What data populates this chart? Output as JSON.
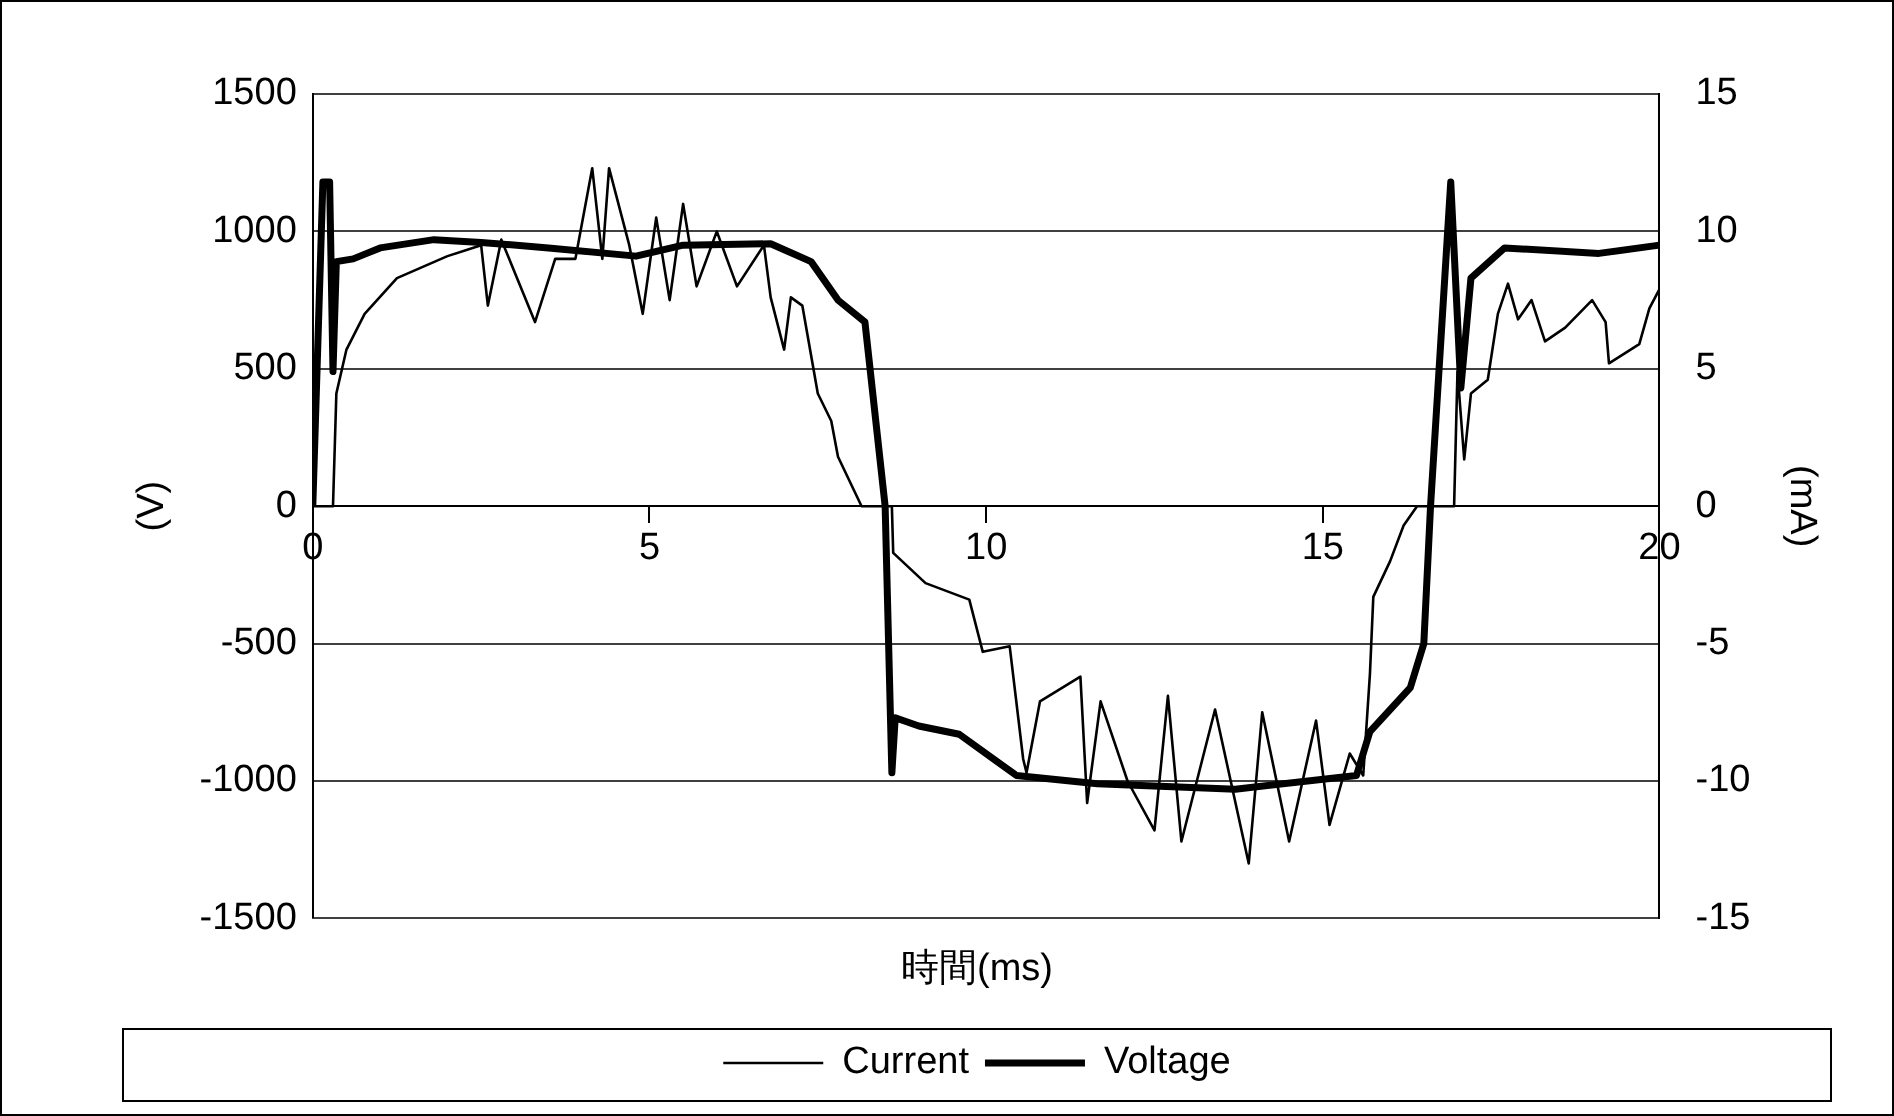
{
  "chart_data": {
    "type": "line",
    "xlabel": "時間(ms)",
    "ylabel": "(V)",
    "y2label": "(mA)",
    "xlim": [
      0,
      20
    ],
    "xticks": [
      0,
      5,
      10,
      15,
      20
    ],
    "ylim": [
      -1500,
      1500
    ],
    "yticks": [
      -1500,
      -1000,
      -500,
      0,
      500,
      1000,
      1500
    ],
    "y2lim": [
      -15,
      15
    ],
    "y2ticks": [
      -15,
      -10,
      -5,
      0,
      5,
      10,
      15
    ],
    "grid": "y",
    "legend": "bottom",
    "marker": "none",
    "line_style": "solid",
    "series": [
      {
        "name": "Voltage",
        "color": "#000000",
        "x": [
          0,
          0.15,
          0.25,
          0.3,
          0.35,
          0.6,
          1.0,
          1.8,
          2.5,
          3.5,
          4.8,
          5.5,
          6.8,
          7.4,
          7.8,
          8.2,
          8.5,
          8.6,
          8.65,
          9.0,
          9.6,
          10.45,
          11.65,
          13.7,
          15.5,
          15.7,
          16.3,
          16.5,
          16.6,
          16.9,
          17.05,
          17.2,
          17.7,
          19.1,
          20
        ],
        "values": [
          0,
          1180,
          1180,
          490,
          890,
          900,
          940,
          970,
          960,
          940,
          910,
          950,
          955,
          890,
          750,
          670,
          0,
          -970,
          -770,
          -800,
          -830,
          -980,
          -1010,
          -1030,
          -980,
          -820,
          -660,
          -500,
          0,
          1180,
          430,
          830,
          940,
          920,
          950
        ]
      },
      {
        "name": "Current",
        "color": "#000000",
        "axis": "y2",
        "x": [
          0,
          0.3,
          0.35,
          0.5,
          0.77,
          1.25,
          2.0,
          2.5,
          2.6,
          2.8,
          3.3,
          3.6,
          3.9,
          4.15,
          4.3,
          4.4,
          4.7,
          4.9,
          5.1,
          5.3,
          5.5,
          5.7,
          6.0,
          6.3,
          6.7,
          6.8,
          7.0,
          7.1,
          7.27,
          7.5,
          7.7,
          7.8,
          8.15,
          8.6,
          8.62,
          9.1,
          9.75,
          9.95,
          10.35,
          10.55,
          10.6,
          10.8,
          11.4,
          11.5,
          11.7,
          12.1,
          12.5,
          12.7,
          12.9,
          13.4,
          13.9,
          14.1,
          14.5,
          14.9,
          15.1,
          15.4,
          15.6,
          15.7,
          15.75,
          16.0,
          16.2,
          16.4,
          16.95,
          17.0,
          17.1,
          17.2,
          17.45,
          17.6,
          17.75,
          17.9,
          18.1,
          18.3,
          18.6,
          19.0,
          19.2,
          19.25,
          19.7,
          19.85,
          20
        ],
        "values": [
          0,
          0,
          4.1,
          5.7,
          7.0,
          8.3,
          9.1,
          9.5,
          7.3,
          9.7,
          6.7,
          9.0,
          9.0,
          12.3,
          9.0,
          12.3,
          9.5,
          7.0,
          10.5,
          7.5,
          11.0,
          8.0,
          10.0,
          8.0,
          9.5,
          7.6,
          5.7,
          7.6,
          7.3,
          4.1,
          3.1,
          1.8,
          0,
          0,
          -1.7,
          -2.8,
          -3.4,
          -5.3,
          -5.1,
          -9.2,
          -9.7,
          -7.1,
          -6.2,
          -10.8,
          -7.1,
          -10.0,
          -11.8,
          -6.9,
          -12.2,
          -7.4,
          -13.0,
          -7.5,
          -12.2,
          -7.8,
          -11.6,
          -9.0,
          -9.8,
          -6.1,
          -3.3,
          -2.0,
          -0.7,
          0,
          0,
          4.9,
          1.7,
          4.1,
          4.6,
          7.0,
          8.1,
          6.8,
          7.5,
          6.0,
          6.5,
          7.5,
          6.7,
          5.2,
          5.9,
          7.2,
          7.9
        ]
      }
    ]
  }
}
